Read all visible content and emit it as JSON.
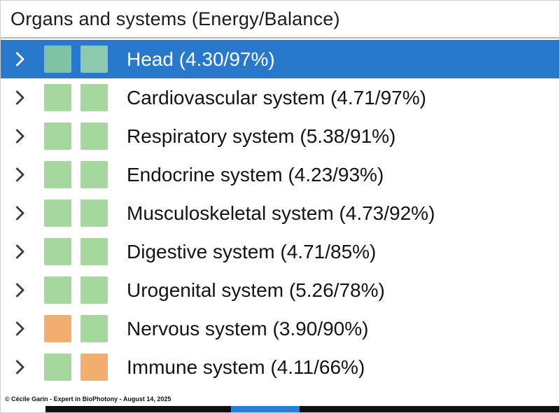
{
  "header": {
    "title": "Organs and systems (Energy/Balance)"
  },
  "rows": [
    {
      "label": "Head (4.30/97%)",
      "selected": true,
      "squares": [
        "#7fc3a7",
        "#8cc9ae"
      ]
    },
    {
      "label": "Cardiovascular system (4.71/97%)",
      "selected": false,
      "squares": [
        "#a6d79f",
        "#a6d79f"
      ]
    },
    {
      "label": "Respiratory system (5.38/91%)",
      "selected": false,
      "squares": [
        "#a6d79f",
        "#a6d79f"
      ]
    },
    {
      "label": "Endocrine system (4.23/93%)",
      "selected": false,
      "squares": [
        "#a6d79f",
        "#a6d79f"
      ]
    },
    {
      "label": "Musculoskeletal system (4.73/92%)",
      "selected": false,
      "squares": [
        "#a6d79f",
        "#a6d79f"
      ]
    },
    {
      "label": "Digestive system (4.71/85%)",
      "selected": false,
      "squares": [
        "#a6d79f",
        "#a6d79f"
      ]
    },
    {
      "label": "Urogenital system (5.26/78%)",
      "selected": false,
      "squares": [
        "#a6d79f",
        "#a6d79f"
      ]
    },
    {
      "label": "Nervous system (3.90/90%)",
      "selected": false,
      "squares": [
        "#f2ae6f",
        "#a6d79f"
      ]
    },
    {
      "label": "Immune system (4.11/66%)",
      "selected": false,
      "squares": [
        "#a6d79f",
        "#f2ae6f"
      ]
    }
  ],
  "footer": {
    "credit": "© Cécile Garin - Expert in BioPhotony - August 14, 2025"
  },
  "colors": {
    "selection": "#2878cc",
    "green": "#a6d79f",
    "orange": "#f2ae6f",
    "bar_bg": "#101010",
    "bar_segment": "#2a7fd4"
  }
}
